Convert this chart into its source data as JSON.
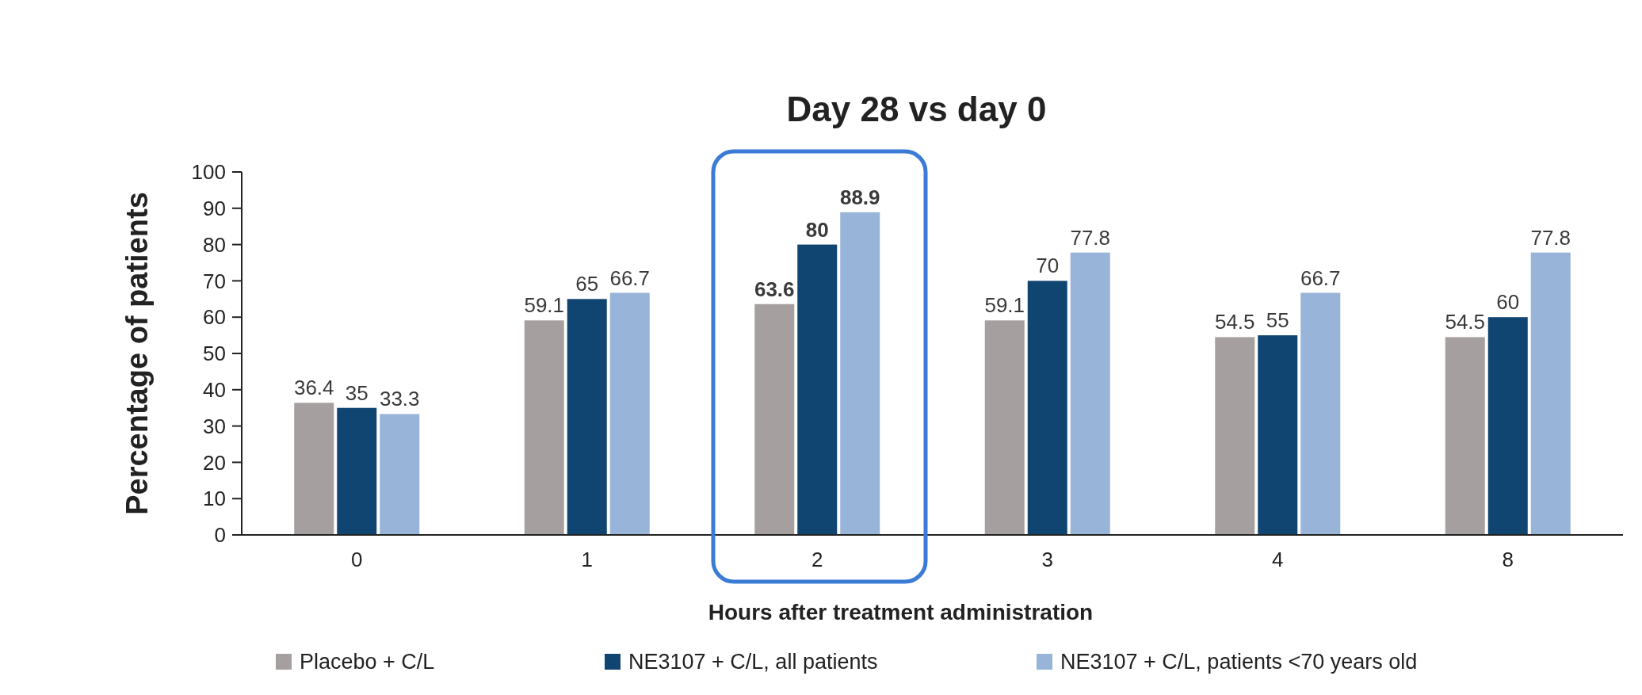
{
  "chart_data": {
    "type": "bar",
    "title": "Day 28 vs day 0",
    "xlabel": "Hours after treatment administration",
    "ylabel": "Percentage of patients",
    "categories": [
      "0",
      "1",
      "2",
      "3",
      "4",
      "8"
    ],
    "series": [
      {
        "name": "Placebo + C/L",
        "color": "#a5a09f",
        "values": [
          36.4,
          59.1,
          63.6,
          59.1,
          54.5,
          54.5
        ]
      },
      {
        "name": "NE3107 + C/L, all patients",
        "color": "#104571",
        "values": [
          35,
          65,
          80,
          70,
          55,
          60
        ]
      },
      {
        "name": "NE3107 + C/L, patients <70 years old",
        "color": "#98b4d8",
        "values": [
          33.3,
          66.7,
          88.9,
          77.8,
          66.7,
          77.8
        ]
      }
    ],
    "ylim": [
      0,
      100
    ],
    "yticks": [
      0,
      10,
      20,
      30,
      40,
      50,
      60,
      70,
      80,
      90,
      100
    ],
    "data_labels": true,
    "grid": false,
    "legend": "bottom"
  }
}
